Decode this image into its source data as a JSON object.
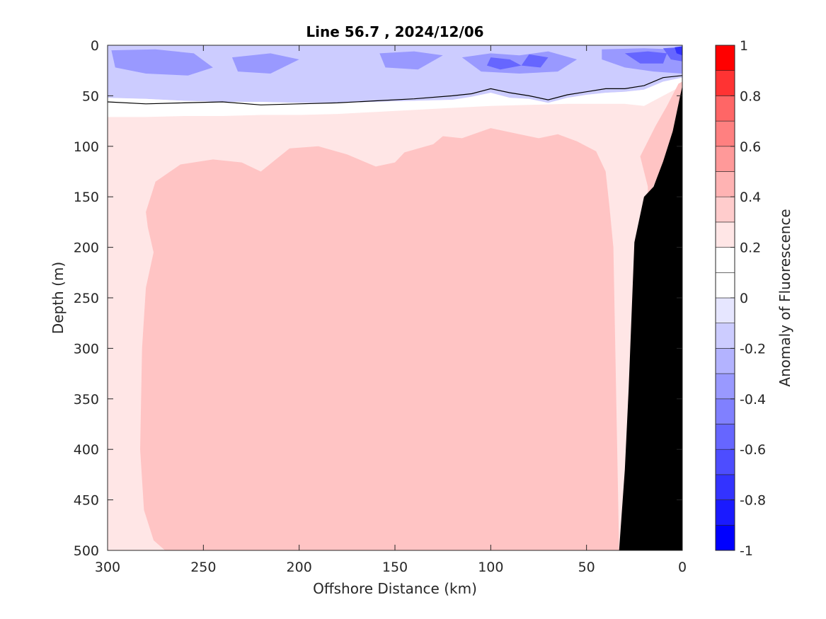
{
  "chart_data": {
    "type": "filled-contour",
    "title": "Line 56.7 , 2024/12/06",
    "xlabel": "Offshore Distance (km)",
    "ylabel": "Depth (m)",
    "colorbar_label": "Anomaly of Fluorescence",
    "x_axis": {
      "min": 0,
      "max": 300,
      "reversed": true,
      "ticks": [
        300,
        250,
        200,
        150,
        100,
        50,
        0
      ]
    },
    "y_axis": {
      "min": 0,
      "max": 500,
      "reversed": true,
      "ticks": [
        0,
        50,
        100,
        150,
        200,
        250,
        300,
        350,
        400,
        450,
        500
      ]
    },
    "colorbar": {
      "min": -1,
      "max": 1,
      "ticks": [
        1,
        0.8,
        0.6,
        0.4,
        0.2,
        0,
        -0.2,
        -0.4,
        -0.6,
        -0.8,
        -1
      ],
      "tick_labels": [
        "1",
        "0.8",
        "0.6",
        "0.4",
        "0.2",
        "0",
        "-0.2",
        "-0.4",
        "-0.6",
        "-0.8",
        "-1"
      ],
      "levels": [
        -1,
        -0.9,
        -0.8,
        -0.7,
        -0.6,
        -0.5,
        -0.4,
        -0.3,
        -0.2,
        -0.1,
        0,
        0.1,
        0.2,
        0.3,
        0.4,
        0.5,
        0.6,
        0.7,
        0.8,
        0.9,
        1
      ],
      "colors": [
        "#0000ff",
        "#1a1aff",
        "#3333ff",
        "#4d4dff",
        "#6666ff",
        "#8080ff",
        "#9999ff",
        "#b3b3ff",
        "#ccccff",
        "#e6e6ff",
        "#ffffff",
        "#ffffff",
        "#ffe6e6",
        "#ffcccc",
        "#ffb3b3",
        "#ff9999",
        "#ff8080",
        "#ff6666",
        "#ff3333",
        "#ff0000"
      ]
    },
    "regions": [
      {
        "name": "surface-negative-anomaly",
        "value": -0.3,
        "depth_range_m": [
          0,
          50
        ]
      },
      {
        "name": "subsurface-weak-positive",
        "value": 0.15,
        "depth_range_m": [
          50,
          500
        ]
      },
      {
        "name": "core-positive-anomaly",
        "value": 0.25,
        "depth_range_m": [
          85,
          500
        ],
        "distance_range_km": [
          33,
          280
        ]
      }
    ],
    "zero_contour": {
      "x": [
        300,
        280,
        260,
        240,
        220,
        200,
        180,
        160,
        140,
        120,
        110,
        100,
        90,
        80,
        70,
        60,
        50,
        40,
        30,
        20,
        10,
        0
      ],
      "depth": [
        56,
        58,
        57,
        56,
        59,
        58,
        57,
        55,
        53,
        50,
        48,
        43,
        47,
        50,
        54,
        49,
        46,
        43,
        43,
        40,
        32,
        30
      ]
    },
    "bathymetry": {
      "x": [
        0,
        5,
        10,
        15,
        20,
        25,
        28,
        30,
        33
      ],
      "depth": [
        40,
        85,
        115,
        140,
        150,
        195,
        340,
        420,
        500
      ]
    }
  }
}
